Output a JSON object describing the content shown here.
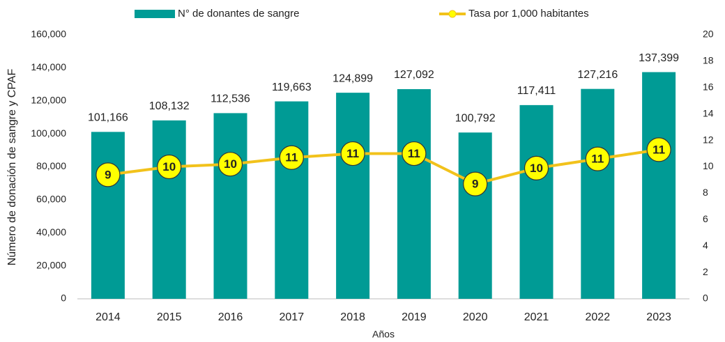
{
  "chart_data": {
    "type": "bar-line",
    "categories": [
      "2014",
      "2015",
      "2016",
      "2017",
      "2018",
      "2019",
      "2020",
      "2021",
      "2022",
      "2023"
    ],
    "series": [
      {
        "name": "N° de donantes de sangre",
        "color": "#009b95",
        "type": "bar",
        "values": [
          101166,
          108132,
          112536,
          119663,
          124899,
          127092,
          100792,
          117411,
          127216,
          137399
        ],
        "value_labels": [
          "101,166",
          "108,132",
          "112,536",
          "119,663",
          "124,899",
          "127,092",
          "100,792",
          "117,411",
          "127,216",
          "137,399"
        ]
      },
      {
        "name": "Tasa por 1,000 habitantes",
        "color": "#f2c21b",
        "marker_color": "#ffff00",
        "type": "line",
        "axis": "y2",
        "values": [
          9.4,
          10.0,
          10.2,
          10.7,
          11.0,
          11.0,
          8.7,
          9.9,
          10.6,
          11.3
        ],
        "value_labels": [
          "9",
          "10",
          "10",
          "11",
          "11",
          "11",
          "9",
          "10",
          "11",
          "11"
        ]
      }
    ],
    "ylabel": "Número de donación de sangre y CPAF",
    "xlabel": "Años",
    "ylim": [
      0,
      160000
    ],
    "yticks": [
      0,
      {
        "value": 20000,
        "label": "20,000"
      },
      {
        "value": 40000,
        "label": "40,000"
      },
      {
        "value": 60000,
        "label": "60,000"
      },
      {
        "value": 80000,
        "label": "80,000"
      },
      {
        "value": 100000,
        "label": "100,000"
      },
      {
        "value": 120000,
        "label": "120,000"
      },
      {
        "value": 140000,
        "label": "140,000"
      },
      {
        "value": 160000,
        "label": "160,000"
      }
    ],
    "y2lim": [
      0,
      20
    ],
    "y2ticks": [
      0,
      2,
      4,
      6,
      8,
      10,
      12,
      14,
      16,
      18,
      20
    ],
    "grid": false,
    "legend": "top"
  }
}
